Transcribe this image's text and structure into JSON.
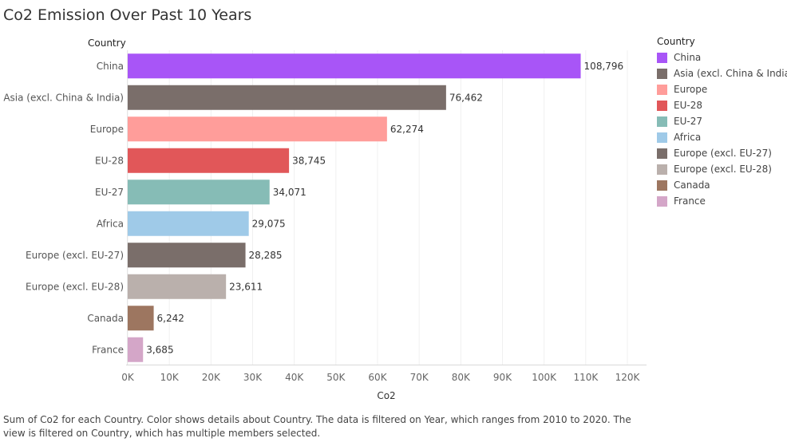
{
  "title": "Co2 Emission Over Past 10 Years",
  "row_header": "Country",
  "legend": {
    "title": "Country",
    "items": [
      {
        "label": "China",
        "color": "#A855F7"
      },
      {
        "label": "Asia (excl. China & India)",
        "color": "#7A6E6A"
      },
      {
        "label": "Europe",
        "color": "#FF9D9A"
      },
      {
        "label": "EU-28",
        "color": "#E15759"
      },
      {
        "label": "EU-27",
        "color": "#86BCB6"
      },
      {
        "label": "Africa",
        "color": "#9FCAE8"
      },
      {
        "label": "Europe (excl. EU-27)",
        "color": "#7A6E6A"
      },
      {
        "label": "Europe (excl. EU-28)",
        "color": "#BAB0AC"
      },
      {
        "label": "Canada",
        "color": "#9D7660"
      },
      {
        "label": "France",
        "color": "#D4A6C8"
      }
    ]
  },
  "caption": "Sum of Co2 for each Country.  Color shows details about Country. The data is filtered on Year, which ranges from 2010 to 2020. The view is filtered on Country, which has multiple members selected.",
  "chart_data": {
    "type": "bar",
    "orientation": "horizontal",
    "title": "Co2 Emission Over Past 10 Years",
    "xlabel": "Co2",
    "ylabel": "Country",
    "categories": [
      "China",
      "Asia (excl. China & India)",
      "Europe",
      "EU-28",
      "EU-27",
      "Africa",
      "Europe (excl. EU-27)",
      "Europe (excl. EU-28)",
      "Canada",
      "France"
    ],
    "values": [
      108796,
      76462,
      62274,
      38745,
      34071,
      29075,
      28285,
      23611,
      6242,
      3685
    ],
    "value_labels": [
      "108,796",
      "76,462",
      "62,274",
      "38,745",
      "34,071",
      "29,075",
      "28,285",
      "23,611",
      "6,242",
      "3,685"
    ],
    "colors": [
      "#A855F7",
      "#7A6E6A",
      "#FF9D9A",
      "#E15759",
      "#86BCB6",
      "#9FCAE8",
      "#7A6E6A",
      "#BAB0AC",
      "#9D7660",
      "#D4A6C8"
    ],
    "xlim": [
      0,
      120000
    ],
    "xticks": [
      0,
      10000,
      20000,
      30000,
      40000,
      50000,
      60000,
      70000,
      80000,
      90000,
      100000,
      110000,
      120000
    ],
    "xtick_labels": [
      "0K",
      "10K",
      "20K",
      "30K",
      "40K",
      "50K",
      "60K",
      "70K",
      "80K",
      "90K",
      "100K",
      "110K",
      "120K"
    ],
    "grid": true,
    "legend_position": "right"
  }
}
